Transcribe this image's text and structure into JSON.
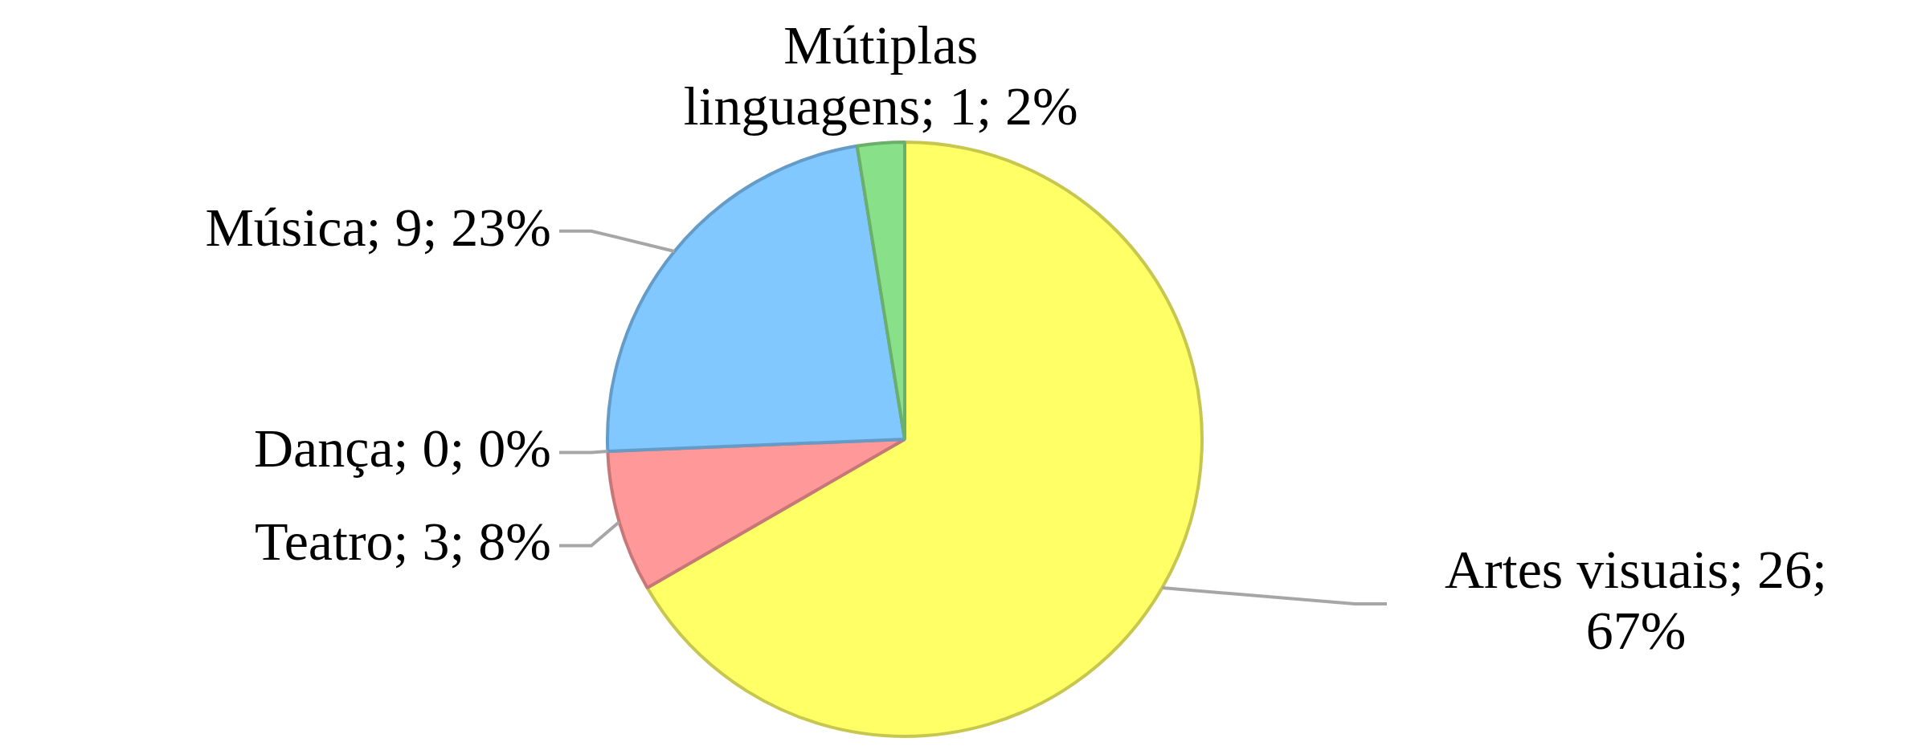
{
  "chart_data": {
    "type": "pie",
    "categories": [
      "Artes visuais",
      "Teatro",
      "Dança",
      "Música",
      "Mútiplas linguagens"
    ],
    "values": [
      26,
      3,
      0,
      9,
      1
    ],
    "value_labels": [
      "; 26; 67%",
      "; 3; 8%",
      "; 0; 0%",
      "; 9; 23%",
      "; 1; 2%"
    ],
    "colors": [
      "#ffff66",
      "#ff9999",
      "#ff99cc",
      "#80c8ff",
      "#88e088"
    ]
  }
}
